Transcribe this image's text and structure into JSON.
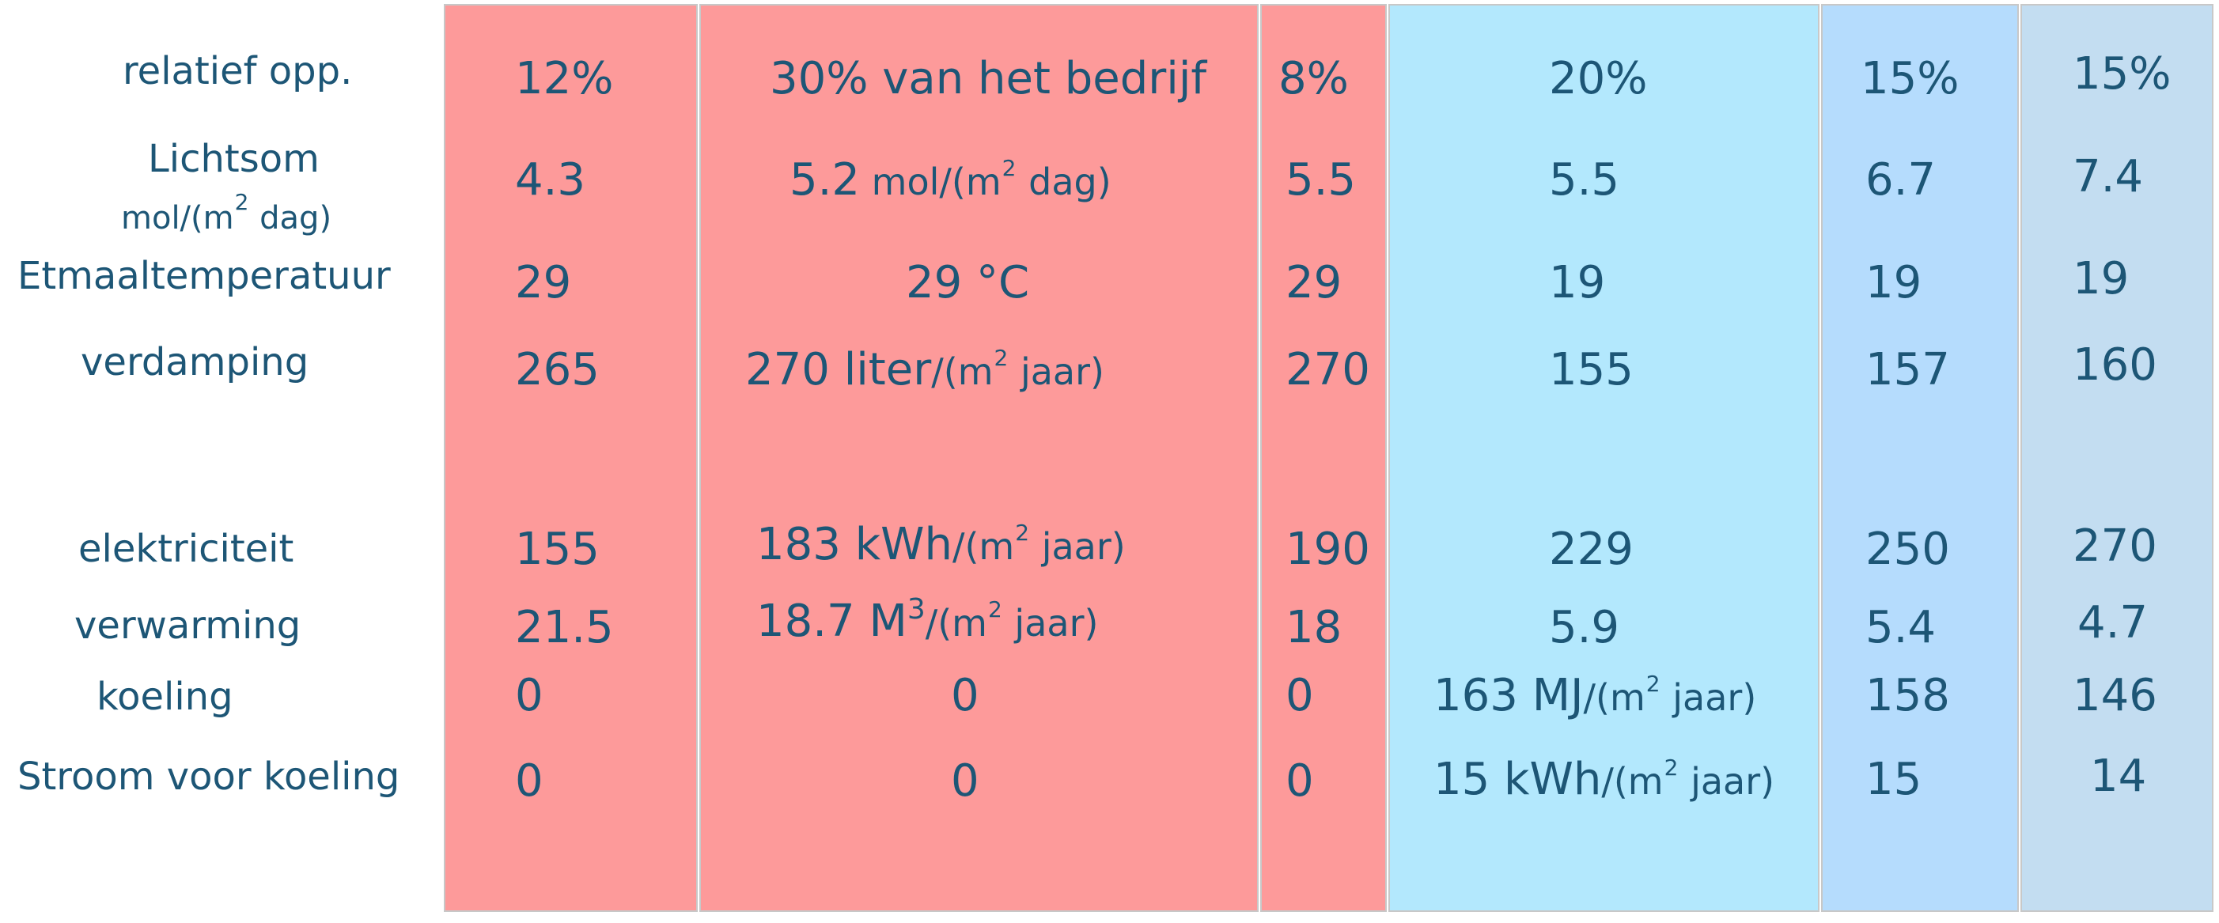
{
  "colors": {
    "text": "#1d5676",
    "red": "#fd9a9a",
    "cyan": "#b3e8fd",
    "blue": "#b5dcfd",
    "steel": "#c3ddf1",
    "border": "#c8c8c8"
  },
  "row_labels": {
    "relatief_opp": "relatief opp.",
    "lichtsom": "Lichtsom",
    "lichtsom_unit_a": "mol/(m",
    "lichtsom_unit_sup": "2",
    "lichtsom_unit_b": " dag)",
    "etmaaltemperatuur": "Etmaaltemperatuur",
    "verdamping": "verdamping",
    "elektriciteit": "elektriciteit",
    "verwarming": "verwarming",
    "koeling": "koeling",
    "stroom_voor_koeling": "Stroom voor koeling"
  },
  "columns": {
    "c1": {
      "relatief_opp": "12%",
      "lichtsom": "4.3",
      "etmaaltemperatuur": "29",
      "verdamping": "265",
      "elektriciteit": "155",
      "verwarming": "21.5",
      "koeling": "0",
      "stroom_voor_koeling": "0"
    },
    "c2": {
      "relatief_opp": "30% van het bedrijf",
      "lichtsom": "5.2",
      "lichtsom_unit_a": " mol/(m",
      "lichtsom_unit_sup": "2",
      "lichtsom_unit_b": " dag)",
      "etmaaltemperatuur": "29 °C",
      "verdamping": "270 liter",
      "verdamping_unit_a": "/(m",
      "verdamping_unit_sup": "2",
      "verdamping_unit_b": " jaar)",
      "elektriciteit": "183 kWh",
      "elektriciteit_unit_a": "/(m",
      "elektriciteit_unit_sup": "2",
      "elektriciteit_unit_b": " jaar)",
      "verwarming": "18.7 M",
      "verwarming_sup": "3",
      "verwarming_unit_a": "/(m",
      "verwarming_unit_sup": "2",
      "verwarming_unit_b": " jaar)",
      "koeling": "0",
      "stroom_voor_koeling": "0"
    },
    "c3": {
      "relatief_opp": "8%",
      "lichtsom": "5.5",
      "etmaaltemperatuur": "29",
      "verdamping": "270",
      "elektriciteit": "190",
      "verwarming": "18",
      "koeling": "0",
      "stroom_voor_koeling": "0"
    },
    "c4": {
      "relatief_opp": "20%",
      "lichtsom": "5.5",
      "etmaaltemperatuur": "19",
      "verdamping": "155",
      "elektriciteit": "229",
      "verwarming": "5.9",
      "koeling": "163 MJ",
      "koeling_unit_a": "/(m",
      "koeling_unit_sup": "2",
      "koeling_unit_b": " jaar)",
      "stroom_voor_koeling": "15 kWh",
      "stroom_unit_a": "/(m",
      "stroom_unit_sup": "2",
      "stroom_unit_b": " jaar)"
    },
    "c5": {
      "relatief_opp": "15%",
      "lichtsom": "6.7",
      "etmaaltemperatuur": "19",
      "verdamping": "157",
      "elektriciteit": "250",
      "verwarming": "5.4",
      "koeling": "158",
      "stroom_voor_koeling": "15"
    },
    "c6": {
      "relatief_opp": "15%",
      "lichtsom": "7.4",
      "etmaaltemperatuur": "19",
      "verdamping": "160",
      "elektriciteit": "270",
      "verwarming": "4.7",
      "koeling": "146",
      "stroom_voor_koeling": "14"
    }
  }
}
